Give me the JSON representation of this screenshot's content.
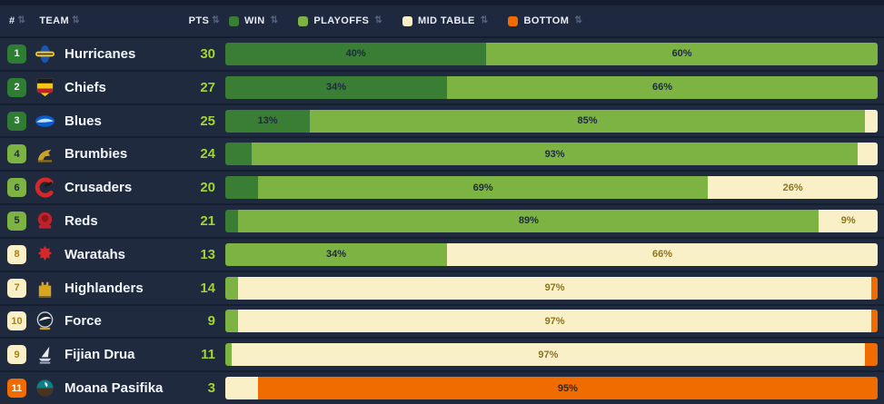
{
  "colors": {
    "win": "#3a7d34",
    "playoffs": "#7cb342",
    "mid_table": "#faf0c8",
    "bottom": "#f06c00",
    "points_text": "#a3d42f",
    "background": "#1f2a3e"
  },
  "header": {
    "rank_label": "#",
    "team_label": "TEAM",
    "pts_label": "PTS",
    "sort_icon": "⇅",
    "legend": [
      {
        "key": "win",
        "label": "WIN"
      },
      {
        "key": "playoffs",
        "label": "PLAYOFFS"
      },
      {
        "key": "mid",
        "label": "MID TABLE"
      },
      {
        "key": "bottom",
        "label": "BOTTOM"
      }
    ]
  },
  "table": {
    "rows": [
      {
        "rank": 1,
        "tier": "win",
        "team": "Hurricanes",
        "logo": "hurricanes-logo",
        "pts": 30,
        "segments": [
          {
            "key": "win",
            "value": 40,
            "label": "40%"
          },
          {
            "key": "playoffs",
            "value": 60,
            "label": "60%"
          }
        ]
      },
      {
        "rank": 2,
        "tier": "win",
        "team": "Chiefs",
        "logo": "chiefs-logo",
        "pts": 27,
        "segments": [
          {
            "key": "win",
            "value": 34,
            "label": "34%"
          },
          {
            "key": "playoffs",
            "value": 66,
            "label": "66%"
          }
        ]
      },
      {
        "rank": 3,
        "tier": "win",
        "team": "Blues",
        "logo": "blues-logo",
        "pts": 25,
        "segments": [
          {
            "key": "win",
            "value": 13,
            "label": "13%"
          },
          {
            "key": "playoffs",
            "value": 85,
            "label": "85%"
          },
          {
            "key": "mid",
            "value": 2,
            "label": ""
          }
        ]
      },
      {
        "rank": 4,
        "tier": "playoffs",
        "team": "Brumbies",
        "logo": "brumbies-logo",
        "pts": 24,
        "segments": [
          {
            "key": "win",
            "value": 4,
            "label": ""
          },
          {
            "key": "playoffs",
            "value": 93,
            "label": "93%"
          },
          {
            "key": "mid",
            "value": 3,
            "label": ""
          }
        ]
      },
      {
        "rank": 6,
        "tier": "playoffs",
        "team": "Crusaders",
        "logo": "crusaders-logo",
        "pts": 20,
        "segments": [
          {
            "key": "win",
            "value": 5,
            "label": ""
          },
          {
            "key": "playoffs",
            "value": 69,
            "label": "69%"
          },
          {
            "key": "mid",
            "value": 26,
            "label": "26%"
          }
        ]
      },
      {
        "rank": 5,
        "tier": "playoffs",
        "team": "Reds",
        "logo": "reds-logo",
        "pts": 21,
        "segments": [
          {
            "key": "win",
            "value": 2,
            "label": ""
          },
          {
            "key": "playoffs",
            "value": 89,
            "label": "89%"
          },
          {
            "key": "mid",
            "value": 9,
            "label": "9%"
          }
        ]
      },
      {
        "rank": 8,
        "tier": "mid",
        "team": "Waratahs",
        "logo": "waratahs-logo",
        "pts": 13,
        "segments": [
          {
            "key": "playoffs",
            "value": 34,
            "label": "34%"
          },
          {
            "key": "mid",
            "value": 66,
            "label": "66%"
          }
        ]
      },
      {
        "rank": 7,
        "tier": "mid",
        "team": "Highlanders",
        "logo": "highlanders-logo",
        "pts": 14,
        "segments": [
          {
            "key": "playoffs",
            "value": 2,
            "label": ""
          },
          {
            "key": "mid",
            "value": 97,
            "label": "97%"
          },
          {
            "key": "bottom",
            "value": 1,
            "label": ""
          }
        ]
      },
      {
        "rank": 10,
        "tier": "mid",
        "team": "Force",
        "logo": "force-logo",
        "pts": 9,
        "segments": [
          {
            "key": "playoffs",
            "value": 2,
            "label": ""
          },
          {
            "key": "mid",
            "value": 97,
            "label": "97%"
          },
          {
            "key": "bottom",
            "value": 1,
            "label": ""
          }
        ]
      },
      {
        "rank": 9,
        "tier": "mid",
        "team": "Fijian Drua",
        "logo": "fijian-drua-logo",
        "pts": 11,
        "segments": [
          {
            "key": "playoffs",
            "value": 1,
            "label": ""
          },
          {
            "key": "mid",
            "value": 97,
            "label": "97%"
          },
          {
            "key": "bottom",
            "value": 2,
            "label": ""
          }
        ]
      },
      {
        "rank": 11,
        "tier": "bottom",
        "team": "Moana Pasifika",
        "logo": "moana-pasifika-logo",
        "pts": 3,
        "segments": [
          {
            "key": "mid",
            "value": 5,
            "label": ""
          },
          {
            "key": "bottom",
            "value": 95,
            "label": "95%"
          }
        ]
      }
    ]
  },
  "chart_data": {
    "type": "bar",
    "stacked": true,
    "orientation": "horizontal",
    "categories": [
      "Hurricanes",
      "Chiefs",
      "Blues",
      "Brumbies",
      "Crusaders",
      "Reds",
      "Waratahs",
      "Highlanders",
      "Force",
      "Fijian Drua",
      "Moana Pasifika"
    ],
    "ranks": [
      1,
      2,
      3,
      4,
      6,
      5,
      8,
      7,
      10,
      9,
      11
    ],
    "points": [
      30,
      27,
      25,
      24,
      20,
      21,
      13,
      14,
      9,
      11,
      3
    ],
    "series": [
      {
        "name": "Win",
        "color": "#3a7d34",
        "values": [
          40,
          34,
          13,
          4,
          5,
          2,
          0,
          0,
          0,
          0,
          0
        ]
      },
      {
        "name": "Playoffs",
        "color": "#7cb342",
        "values": [
          60,
          66,
          85,
          93,
          69,
          89,
          34,
          2,
          2,
          1,
          0
        ]
      },
      {
        "name": "Mid Table",
        "color": "#faf0c8",
        "values": [
          0,
          0,
          2,
          3,
          26,
          9,
          66,
          97,
          97,
          97,
          5
        ]
      },
      {
        "name": "Bottom",
        "color": "#f06c00",
        "values": [
          0,
          0,
          0,
          0,
          0,
          0,
          0,
          1,
          1,
          2,
          95
        ]
      }
    ],
    "xlim": [
      0,
      100
    ],
    "value_format": "percent",
    "legend_position": "top",
    "grid": false
  }
}
